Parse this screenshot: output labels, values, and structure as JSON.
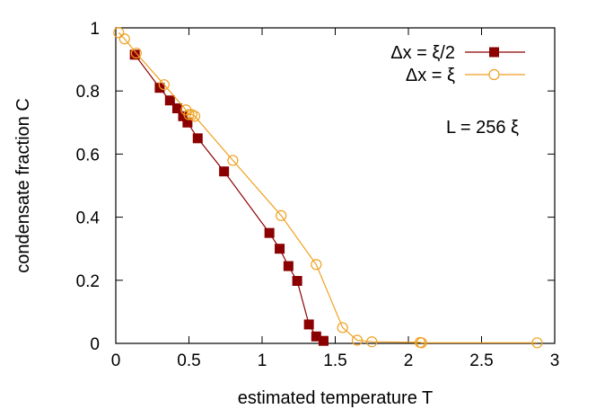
{
  "chart_data": {
    "type": "line",
    "xlabel": "estimated temperature T",
    "ylabel": "condensate fraction C",
    "xlim": [
      0,
      3
    ],
    "ylim": [
      0,
      1
    ],
    "x_ticks": [
      0,
      0.5,
      1,
      1.5,
      2,
      2.5,
      3
    ],
    "x_tick_labels": [
      "0",
      "0.5",
      "1",
      "1.5",
      "2",
      "2.5",
      "3"
    ],
    "y_ticks": [
      0,
      0.2,
      0.4,
      0.6,
      0.8,
      1
    ],
    "y_tick_labels": [
      "0",
      "0.2",
      "0.4",
      "0.6",
      "0.8",
      "1"
    ],
    "grid": false,
    "legend_position": "top-right",
    "annotation": "L = 256 ξ",
    "series": [
      {
        "name": "Δx = ξ/2",
        "color": "#8b0000",
        "marker": "filled-square",
        "x": [
          0.13,
          0.3,
          0.37,
          0.42,
          0.46,
          0.49,
          0.56,
          0.74,
          1.05,
          1.12,
          1.18,
          1.24,
          1.32,
          1.37,
          1.42
        ],
        "y": [
          0.915,
          0.81,
          0.77,
          0.745,
          0.72,
          0.7,
          0.65,
          0.545,
          0.35,
          0.3,
          0.245,
          0.198,
          0.06,
          0.022,
          0.008
        ]
      },
      {
        "name": "Δx = ξ",
        "color": "#f0a020",
        "marker": "open-circle",
        "x": [
          0.02,
          0.06,
          0.14,
          0.33,
          0.48,
          0.5,
          0.52,
          0.54,
          0.8,
          1.13,
          1.37,
          1.55,
          1.65,
          1.75,
          2.08,
          2.09,
          2.88
        ],
        "y": [
          0.985,
          0.965,
          0.92,
          0.82,
          0.74,
          0.725,
          0.725,
          0.72,
          0.58,
          0.405,
          0.25,
          0.05,
          0.01,
          0.005,
          0.003,
          0.002,
          0.002
        ]
      }
    ]
  }
}
